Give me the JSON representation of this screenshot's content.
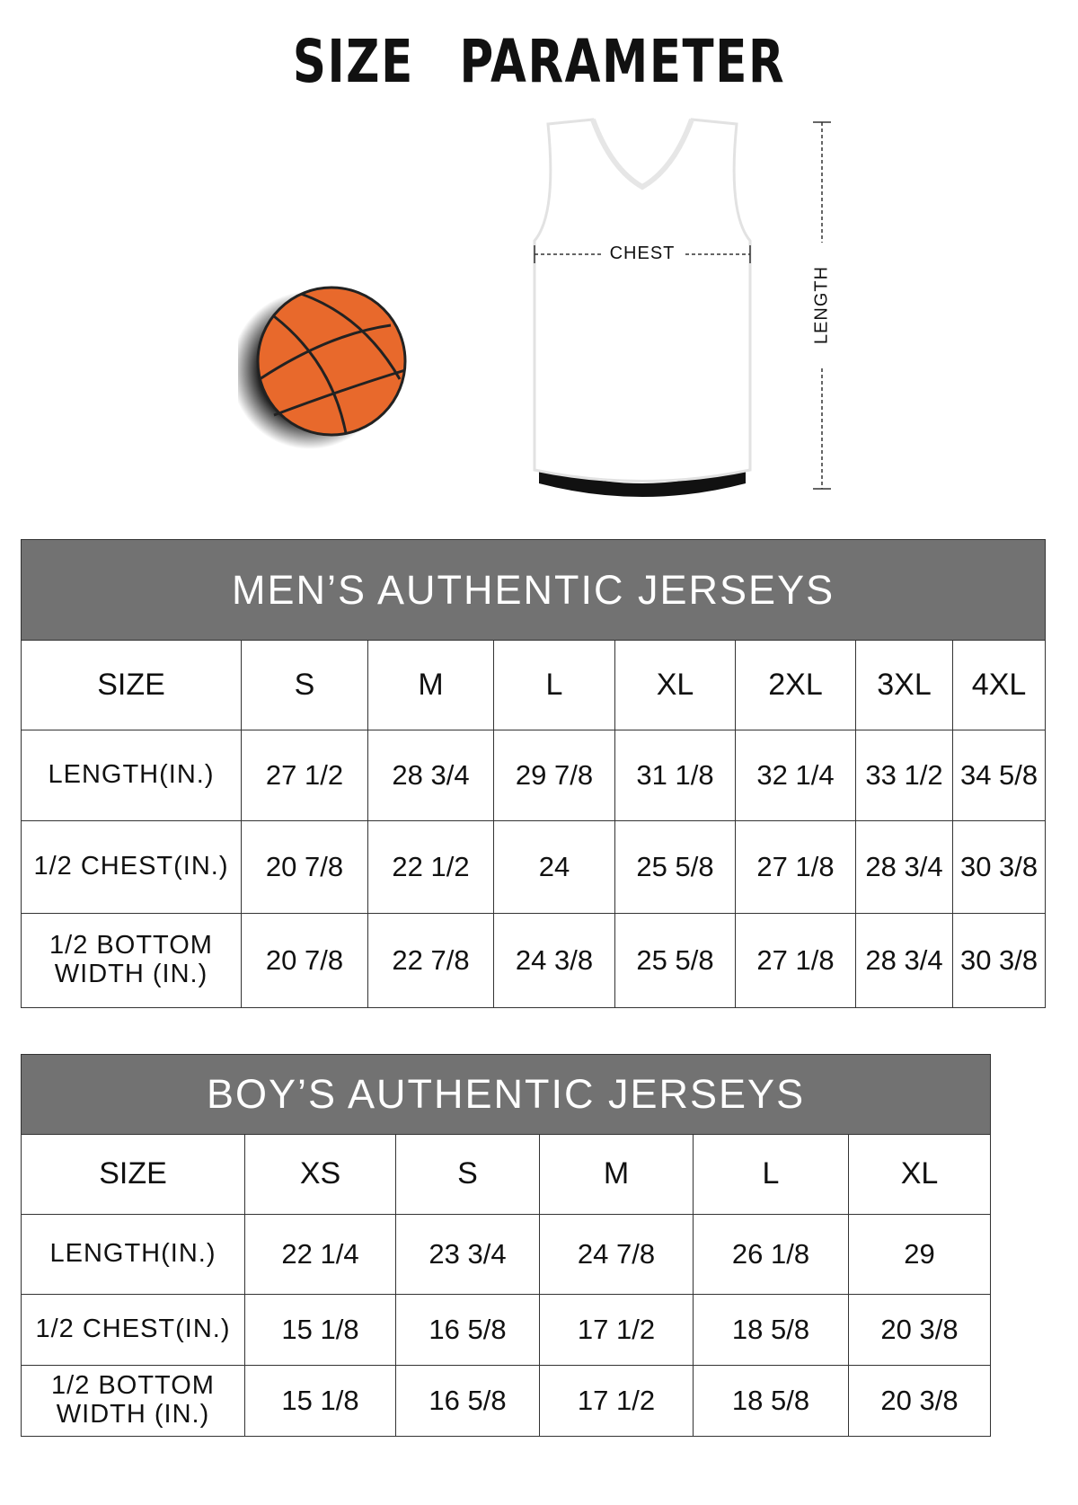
{
  "title": "SIZE PARAMETER",
  "illustration": {
    "chest_label": "CHEST",
    "length_label": "LENGTH",
    "colors": {
      "ball": "#e8692c",
      "header_bg": "#727272"
    }
  },
  "mens_table": {
    "heading": "MEN’S AUTHENTIC JERSEYS",
    "columns": [
      "SIZE",
      "S",
      "M",
      "L",
      "XL",
      "2XL",
      "3XL",
      "4XL"
    ],
    "rows": [
      {
        "label": "LENGTH(IN.)",
        "values": [
          "27 1/2",
          "28 3/4",
          "29 7/8",
          "31 1/8",
          "32 1/4",
          "33 1/2",
          "34 5/8"
        ]
      },
      {
        "label": "1/2 CHEST(IN.)",
        "values": [
          "20 7/8",
          "22 1/2",
          "24",
          "25 5/8",
          "27 1/8",
          "28 3/4",
          "30 3/8"
        ]
      },
      {
        "label": "1/2 BOTTOM WIDTH (IN.)",
        "values": [
          "20 7/8",
          "22 7/8",
          "24 3/8",
          "25 5/8",
          "27 1/8",
          "28 3/4",
          "30 3/8"
        ]
      }
    ]
  },
  "boys_table": {
    "heading": "BOY’S AUTHENTIC JERSEYS",
    "columns": [
      "SIZE",
      "XS",
      "S",
      "M",
      "L",
      "XL"
    ],
    "rows": [
      {
        "label": "LENGTH(IN.)",
        "values": [
          "22 1/4",
          "23 3/4",
          "24 7/8",
          "26 1/8",
          "29"
        ]
      },
      {
        "label": "1/2 CHEST(IN.)",
        "values": [
          "15 1/8",
          "16 5/8",
          "17 1/2",
          "18 5/8",
          "20 3/8"
        ]
      },
      {
        "label": "1/2 BOTTOM WIDTH (IN.)",
        "values": [
          "15 1/8",
          "16 5/8",
          "17 1/2",
          "18 5/8",
          "20 3/8"
        ]
      }
    ]
  }
}
